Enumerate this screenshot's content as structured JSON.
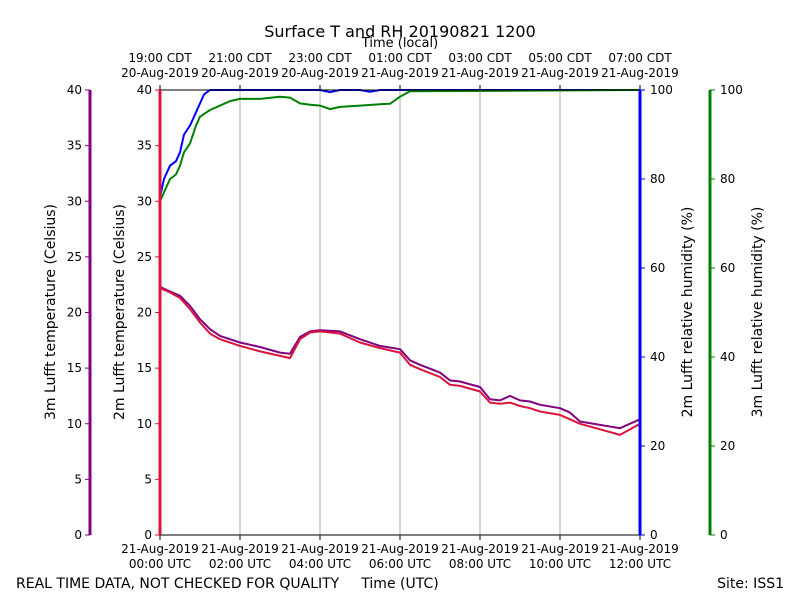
{
  "chart_data": {
    "type": "line",
    "title": "Surface T and RH 20190821 1200",
    "top_axis_label": "Time (local)",
    "xlabel": "Time (UTC)",
    "footer_left": "REAL TIME DATA, NOT CHECKED FOR QUALITY",
    "footer_right": "Site: ISS1",
    "xlim_hours": [
      0,
      12
    ],
    "bottom_ticks": [
      {
        "hour": 0,
        "line1": "21-Aug-2019",
        "line2": "00:00 UTC"
      },
      {
        "hour": 2,
        "line1": "21-Aug-2019",
        "line2": "02:00 UTC"
      },
      {
        "hour": 4,
        "line1": "21-Aug-2019",
        "line2": "04:00 UTC"
      },
      {
        "hour": 6,
        "line1": "21-Aug-2019",
        "line2": "06:00 UTC"
      },
      {
        "hour": 8,
        "line1": "21-Aug-2019",
        "line2": "08:00 UTC"
      },
      {
        "hour": 10,
        "line1": "21-Aug-2019",
        "line2": "10:00 UTC"
      },
      {
        "hour": 12,
        "line1": "21-Aug-2019",
        "line2": "12:00 UTC"
      }
    ],
    "top_ticks": [
      {
        "hour": 0,
        "line1": "19:00 CDT",
        "line2": "20-Aug-2019"
      },
      {
        "hour": 2,
        "line1": "21:00 CDT",
        "line2": "20-Aug-2019"
      },
      {
        "hour": 4,
        "line1": "23:00 CDT",
        "line2": "20-Aug-2019"
      },
      {
        "hour": 6,
        "line1": "01:00 CDT",
        "line2": "21-Aug-2019"
      },
      {
        "hour": 8,
        "line1": "03:00 CDT",
        "line2": "21-Aug-2019"
      },
      {
        "hour": 10,
        "line1": "05:00 CDT",
        "line2": "21-Aug-2019"
      },
      {
        "hour": 12,
        "line1": "07:00 CDT",
        "line2": "21-Aug-2019"
      }
    ],
    "axes": {
      "temp3m": {
        "label": "3m Lufft temperature (Celsius)",
        "color": "#800080",
        "ylim": [
          0,
          40
        ],
        "ticks": [
          0,
          5,
          10,
          15,
          20,
          25,
          30,
          35,
          40
        ]
      },
      "temp2m": {
        "label": "2m Lufft temperature (Celsius)",
        "color": "#dc143c",
        "ylim": [
          0,
          40
        ],
        "ticks": [
          0,
          5,
          10,
          15,
          20,
          25,
          30,
          35,
          40
        ]
      },
      "rh2m": {
        "label": "2m Lufft relative humidity (%)",
        "color": "#0000ff",
        "ylim": [
          0,
          100
        ],
        "ticks": [
          0,
          20,
          40,
          60,
          80,
          100
        ]
      },
      "rh3m": {
        "label": "3m Lufft relative humidity (%)",
        "color": "#008000",
        "ylim": [
          0,
          100
        ],
        "ticks": [
          0,
          20,
          40,
          60,
          80,
          100
        ]
      }
    },
    "series": [
      {
        "name": "3m Lufft temperature",
        "axis": "temp3m",
        "color": "#800080",
        "x": [
          0,
          0.25,
          0.5,
          0.75,
          1.0,
          1.25,
          1.5,
          2.0,
          2.5,
          3.0,
          3.25,
          3.5,
          3.75,
          4.0,
          4.5,
          5.0,
          5.5,
          6.0,
          6.25,
          6.5,
          7.0,
          7.25,
          7.5,
          8.0,
          8.25,
          8.5,
          8.75,
          9.0,
          9.25,
          9.5,
          10.0,
          10.25,
          10.5,
          11.0,
          11.5,
          12.0
        ],
        "values": [
          22.3,
          21.9,
          21.5,
          20.6,
          19.4,
          18.5,
          17.9,
          17.3,
          16.9,
          16.4,
          16.3,
          17.8,
          18.3,
          18.4,
          18.3,
          17.6,
          17.0,
          16.7,
          15.7,
          15.3,
          14.6,
          13.9,
          13.8,
          13.3,
          12.2,
          12.1,
          12.5,
          12.1,
          12.0,
          11.7,
          11.4,
          11.0,
          10.2,
          9.9,
          9.6,
          10.4
        ]
      },
      {
        "name": "2m Lufft temperature",
        "axis": "temp2m",
        "color": "#dc143c",
        "x": [
          0,
          0.25,
          0.5,
          0.75,
          1.0,
          1.25,
          1.5,
          2.0,
          2.5,
          3.0,
          3.25,
          3.5,
          3.75,
          4.0,
          4.5,
          5.0,
          5.5,
          6.0,
          6.25,
          6.5,
          7.0,
          7.25,
          7.5,
          8.0,
          8.25,
          8.5,
          8.75,
          9.0,
          9.25,
          9.5,
          10.0,
          10.25,
          10.5,
          11.0,
          11.5,
          12.0
        ],
        "values": [
          22.2,
          21.8,
          21.3,
          20.3,
          19.1,
          18.1,
          17.6,
          17.0,
          16.5,
          16.1,
          15.9,
          17.6,
          18.2,
          18.3,
          18.1,
          17.3,
          16.8,
          16.4,
          15.3,
          14.9,
          14.2,
          13.5,
          13.4,
          12.9,
          11.9,
          11.8,
          11.9,
          11.6,
          11.4,
          11.1,
          10.8,
          10.4,
          10.0,
          9.5,
          9.0,
          10.0
        ]
      },
      {
        "name": "2m Lufft relative humidity",
        "axis": "rh2m",
        "color": "#0000ff",
        "x": [
          0,
          0.1,
          0.25,
          0.4,
          0.5,
          0.6,
          0.75,
          0.9,
          1.0,
          1.1,
          1.25,
          1.5,
          1.75,
          2.0,
          4.0,
          4.25,
          4.5,
          5.0,
          5.25,
          5.5,
          12.0
        ],
        "values": [
          76,
          80,
          83,
          84,
          86,
          90,
          92,
          95,
          97,
          99,
          100,
          100,
          100,
          100,
          100,
          99.5,
          100,
          100,
          99.6,
          100,
          100
        ]
      },
      {
        "name": "3m Lufft relative humidity",
        "axis": "rh3m",
        "color": "#008000",
        "x": [
          0,
          0.1,
          0.25,
          0.4,
          0.5,
          0.6,
          0.75,
          0.9,
          1.0,
          1.25,
          1.5,
          1.75,
          2.0,
          2.5,
          3.0,
          3.25,
          3.5,
          3.75,
          4.0,
          4.25,
          4.5,
          5.0,
          5.5,
          5.75,
          6.0,
          6.25,
          12.0
        ],
        "values": [
          75,
          77,
          80,
          81,
          83,
          86,
          88,
          92,
          94,
          95.5,
          96.5,
          97.5,
          98,
          98,
          98.5,
          98.3,
          97,
          96.7,
          96.5,
          95.7,
          96.2,
          96.5,
          96.8,
          96.9,
          98.5,
          99.7,
          100
        ]
      }
    ]
  }
}
